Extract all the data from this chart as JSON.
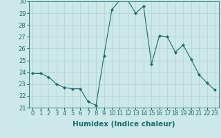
{
  "x": [
    0,
    1,
    2,
    3,
    4,
    5,
    6,
    7,
    8,
    9,
    10,
    11,
    12,
    13,
    14,
    15,
    16,
    17,
    18,
    19,
    20,
    21,
    22,
    23
  ],
  "y": [
    23.9,
    23.9,
    23.6,
    23.0,
    22.7,
    22.6,
    22.6,
    21.5,
    21.2,
    25.4,
    29.3,
    30.1,
    30.1,
    29.0,
    29.6,
    24.7,
    27.1,
    27.0,
    25.7,
    26.3,
    25.1,
    23.8,
    23.1,
    22.5
  ],
  "line_color": "#1a6b6b",
  "marker": "D",
  "marker_size": 2,
  "bg_color": "#cce8e8",
  "grid_color": "#b0d0d0",
  "xlabel": "Humidex (Indice chaleur)",
  "ylim": [
    21,
    30
  ],
  "xlim_min": -0.5,
  "xlim_max": 23.5,
  "yticks": [
    21,
    22,
    23,
    24,
    25,
    26,
    27,
    28,
    29,
    30
  ],
  "xticks": [
    0,
    1,
    2,
    3,
    4,
    5,
    6,
    7,
    8,
    9,
    10,
    11,
    12,
    13,
    14,
    15,
    16,
    17,
    18,
    19,
    20,
    21,
    22,
    23
  ],
  "tick_color": "#1a6b6b",
  "label_color": "#1a6b6b",
  "xlabel_fontsize": 7.5,
  "tick_fontsize": 6
}
